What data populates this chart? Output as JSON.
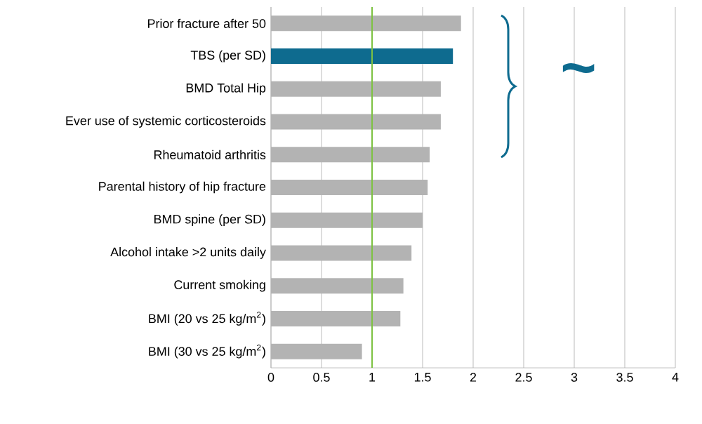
{
  "chart_data": {
    "type": "bar",
    "orientation": "horizontal",
    "categories": [
      "Prior fracture after 50",
      "TBS (per SD)",
      "BMD Total Hip",
      "Ever use of systemic corticosteroids",
      "Rheumatoid arthritis",
      "Parental history of hip fracture",
      "BMD spine (per SD)",
      "Alcohol intake >2 units daily",
      "Current smoking",
      "BMI (20 vs 25 kg/m$^{2}$)",
      "BMI (30 vs 25 kg/m$^{2}$)"
    ],
    "values": [
      1.88,
      1.8,
      1.68,
      1.68,
      1.57,
      1.55,
      1.5,
      1.39,
      1.31,
      1.28,
      0.9
    ],
    "colors": [
      "#b3b3b3",
      "#0e6b8f",
      "#b3b3b3",
      "#b3b3b3",
      "#b3b3b3",
      "#b3b3b3",
      "#b3b3b3",
      "#b3b3b3",
      "#b3b3b3",
      "#b3b3b3",
      "#b3b3b3"
    ],
    "xlim": [
      0,
      4
    ],
    "xticks": [
      0,
      0.5,
      1,
      1.5,
      2,
      2.5,
      3,
      3.5,
      4
    ],
    "grid": "x",
    "ref_lines": [
      {
        "axis": "x",
        "value": 1,
        "color": "#7dc242"
      }
    ],
    "annotations": [
      "~"
    ]
  }
}
